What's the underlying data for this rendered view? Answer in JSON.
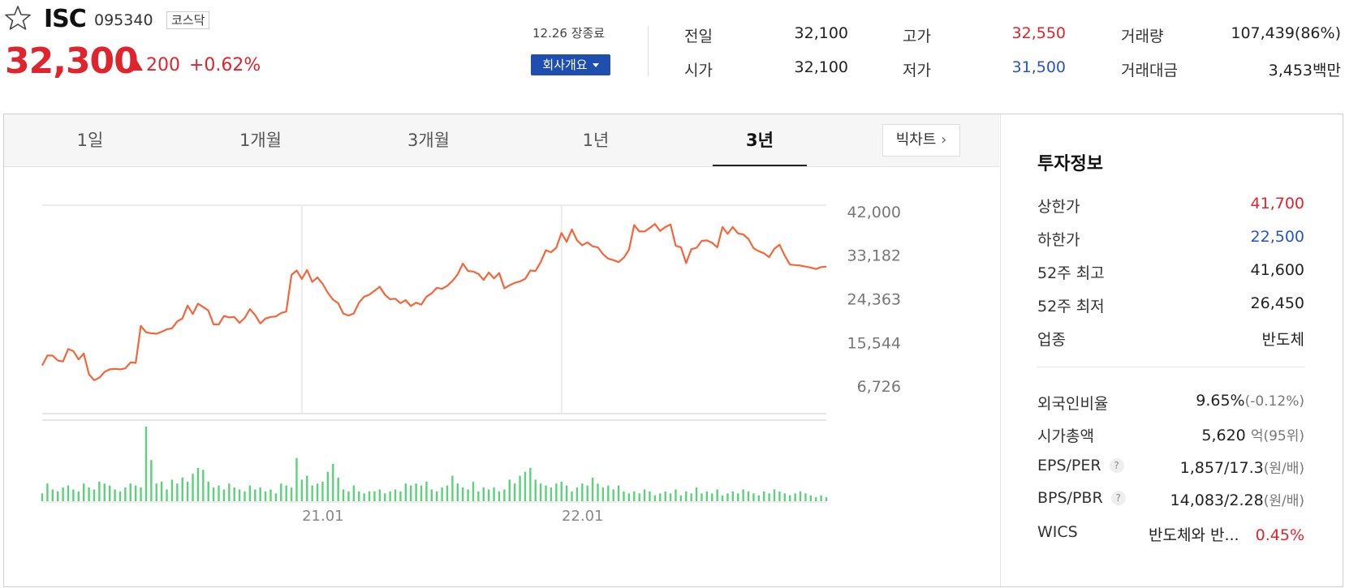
{
  "header": {
    "name": "ISC",
    "code": "095340",
    "market": "코스닥",
    "price": "32,300",
    "change": "200",
    "change_pct": "+0.62%",
    "date_status": "12.26 장종료",
    "overview_label": "회사개요"
  },
  "quote": {
    "prev_close_label": "전일",
    "prev_close": "32,100",
    "open_label": "시가",
    "open": "32,100",
    "high_label": "고가",
    "high": "32,550",
    "low_label": "저가",
    "low": "31,500",
    "volume_label": "거래량",
    "volume": "107,439(86%)",
    "amount_label": "거래대금",
    "amount": "3,453",
    "amount_unit": "백만"
  },
  "tabs": [
    {
      "label": "1일",
      "active": false
    },
    {
      "label": "1개월",
      "active": false
    },
    {
      "label": "3개월",
      "active": false
    },
    {
      "label": "1년",
      "active": false
    },
    {
      "label": "3년",
      "active": true
    }
  ],
  "bigchart_label": "빅차트",
  "investment": {
    "title": "투자정보",
    "upper_limit_label": "상한가",
    "upper_limit": "41,700",
    "lower_limit_label": "하한가",
    "lower_limit": "22,500",
    "high52_label": "52주 최고",
    "high52": "41,600",
    "low52_label": "52주 최저",
    "low52": "26,450",
    "sector_label": "업종",
    "sector": "반도체",
    "foreign_label": "외국인비율",
    "foreign": "9.65%",
    "foreign_change": "(-0.12%)",
    "mcap_label": "시가총액",
    "mcap": "5,620",
    "mcap_unit": "억",
    "mcap_rank": "(95위)",
    "eps_label": "EPS/PER",
    "eps": "1,857/17.3",
    "eps_unit": "(원/배)",
    "bps_label": "BPS/PBR",
    "bps": "14,083/2.28",
    "bps_unit": "(원/배)",
    "wics_label": "WICS",
    "wics": "반도체와 반...",
    "wics_pct": "0.45%"
  },
  "colors": {
    "up": "#e0242d",
    "down": "#2753c7",
    "line": "#f4663a",
    "volume": "#5bd27a",
    "accent": "#1f4fae"
  },
  "chart_data": {
    "type": "line",
    "ytick_labels": [
      "42,000",
      "33,182",
      "24,363",
      "15,544",
      "6,726"
    ],
    "yticks": [
      42000,
      33182,
      24363,
      15544,
      6726
    ],
    "ylim": [
      6726,
      42000
    ],
    "xtick_labels": [
      "21.01",
      "22.01"
    ],
    "xtick_index": [
      50,
      100
    ],
    "grid": true,
    "series": [
      {
        "values": [
          10900,
          12900,
          12900,
          11900,
          11700,
          14200,
          13800,
          12100,
          13300,
          9100,
          7900,
          8400,
          9600,
          10100,
          10200,
          10100,
          10300,
          11500,
          11400,
          18900,
          17600,
          17400,
          17300,
          17700,
          18200,
          18400,
          19800,
          20400,
          23000,
          21300,
          23400,
          22700,
          22000,
          19200,
          19200,
          20900,
          20600,
          20700,
          19500,
          20500,
          22300,
          21100,
          19400,
          20400,
          20700,
          20800,
          21500,
          21800,
          29200,
          30100,
          28400,
          30200,
          27800,
          28700,
          27400,
          25600,
          24200,
          23500,
          21400,
          21000,
          21400,
          23600,
          24800,
          25200,
          26000,
          26800,
          25200,
          24300,
          24400,
          23500,
          24100,
          22900,
          23600,
          23200,
          24800,
          25500,
          26600,
          26400,
          27000,
          28000,
          29300,
          31500,
          30000,
          29900,
          29400,
          28200,
          29700,
          28500,
          29600,
          26500,
          27100,
          27600,
          27900,
          28400,
          30100,
          30000,
          31800,
          34200,
          33800,
          34700,
          37700,
          35900,
          38400,
          36200,
          35200,
          35800,
          35000,
          34800,
          33400,
          32500,
          32200,
          31800,
          32700,
          34300,
          39300,
          38000,
          38000,
          38700,
          39500,
          38100,
          38900,
          39400,
          35100,
          34800,
          31600,
          34400,
          34700,
          36100,
          36200,
          35700,
          34800,
          38900,
          37500,
          38900,
          37600,
          37400,
          36500,
          34600,
          34000,
          33600,
          32800,
          34500,
          35300,
          33100,
          31300,
          31200,
          31100,
          30900,
          30700,
          30400,
          30800,
          30900
        ]
      }
    ],
    "volume": [
      4,
      9,
      6,
      5,
      7,
      8,
      6,
      5,
      9,
      7,
      6,
      10,
      9,
      8,
      6,
      5,
      7,
      9,
      8,
      7,
      38,
      21,
      9,
      10,
      6,
      11,
      9,
      12,
      10,
      14,
      17,
      16,
      10,
      7,
      8,
      6,
      9,
      7,
      6,
      5,
      8,
      6,
      7,
      5,
      6,
      4,
      9,
      8,
      7,
      22,
      11,
      13,
      8,
      9,
      10,
      15,
      19,
      12,
      6,
      5,
      8,
      5,
      4,
      5,
      5,
      6,
      4,
      5,
      6,
      5,
      9,
      8,
      9,
      8,
      10,
      6,
      5,
      7,
      8,
      13,
      9,
      7,
      6,
      10,
      5,
      7,
      6,
      7,
      5,
      6,
      11,
      9,
      13,
      15,
      17,
      11,
      9,
      8,
      7,
      9,
      10,
      8,
      5,
      7,
      9,
      8,
      12,
      9,
      7,
      8,
      6,
      8,
      5,
      4,
      5,
      4,
      6,
      5,
      3,
      4,
      5,
      4,
      6,
      3,
      5,
      4,
      7,
      4,
      5,
      4,
      6,
      3,
      4,
      5,
      4,
      6,
      5,
      4,
      3,
      5,
      4,
      6,
      5,
      4,
      3,
      4,
      5,
      4,
      3,
      2,
      3,
      2
    ]
  }
}
